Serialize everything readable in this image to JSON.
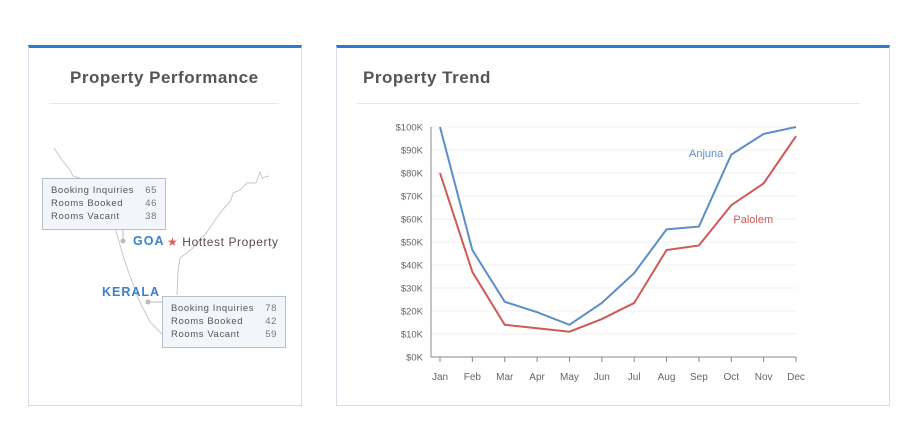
{
  "left_panel": {
    "title": "Property Performance",
    "goa": {
      "label": "GOA",
      "badge": "Hottest Property",
      "badge_icon": "star-icon",
      "stats": [
        {
          "label": "Booking Inquiries",
          "value": "65"
        },
        {
          "label": "Rooms Booked",
          "value": "46"
        },
        {
          "label": "Rooms Vacant",
          "value": "38"
        }
      ]
    },
    "kerala": {
      "label": "KERALA",
      "stats": [
        {
          "label": "Booking Inquiries",
          "value": "78"
        },
        {
          "label": "Rooms Booked",
          "value": "42"
        },
        {
          "label": "Rooms Vacant",
          "value": "59"
        }
      ]
    }
  },
  "right_panel": {
    "title": "Property Trend"
  },
  "colors": {
    "accent": "#2e7ccc",
    "anjuna": "#5b8fc9",
    "palolem": "#cf5a55"
  },
  "chart_data": {
    "type": "line",
    "title": "Property Trend",
    "xlabel": "",
    "ylabel": "",
    "categories": [
      "Jan",
      "Feb",
      "Mar",
      "Apr",
      "May",
      "Jun",
      "Jul",
      "Aug",
      "Sep",
      "Oct",
      "Nov",
      "Dec"
    ],
    "yticks": [
      "$0K",
      "$10K",
      "$20K",
      "$30K",
      "$40K",
      "$50K",
      "$60K",
      "$70K",
      "$80K",
      "$90K",
      "$100K"
    ],
    "ylim": [
      0,
      100
    ],
    "grid": true,
    "series": [
      {
        "name": "Anjuna",
        "color": "#5b8fc9",
        "values": [
          100,
          46.5,
          24,
          19.5,
          14,
          23.5,
          36.5,
          55.5,
          56.7,
          88,
          97,
          100
        ]
      },
      {
        "name": "Palolem",
        "color": "#cf5a55",
        "values": [
          80,
          37,
          14,
          12.5,
          11,
          16.5,
          23.5,
          46.5,
          48.5,
          66,
          75.5,
          96
        ]
      }
    ]
  }
}
